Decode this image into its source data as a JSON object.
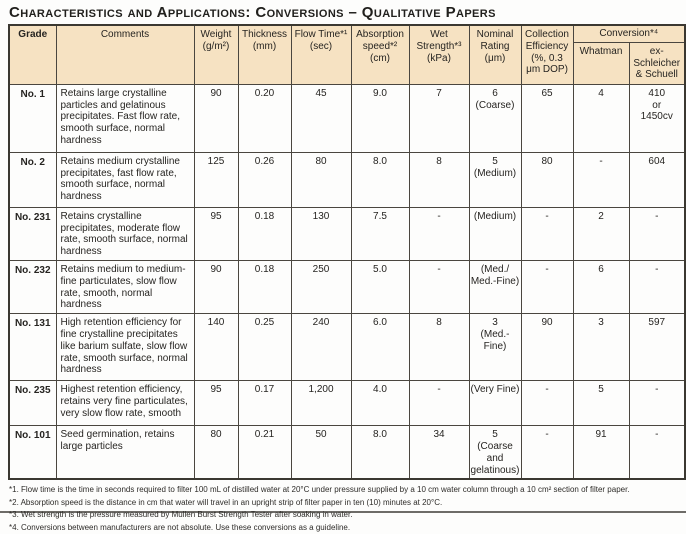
{
  "title": "Characteristics and Applications: Conversions – Qualitative Papers",
  "colors": {
    "header_bg": "#f6e2c2",
    "border": "#3b3831",
    "text": "#262421"
  },
  "table": {
    "conversion_group_label": "Conversion*⁴",
    "columns": [
      {
        "id": "grade",
        "label": "Grade"
      },
      {
        "id": "comments",
        "label": "Comments"
      },
      {
        "id": "weight",
        "label": "Weight\n(g/m²)"
      },
      {
        "id": "thickness",
        "label": "Thickness\n(mm)"
      },
      {
        "id": "flow_time",
        "label": "Flow Time*¹\n(sec)"
      },
      {
        "id": "absorption_speed",
        "label": "Absorption\nspeed*² (cm)"
      },
      {
        "id": "wet_strength",
        "label": "Wet\nStrength*³\n(kPa)"
      },
      {
        "id": "nominal_rating",
        "label": "Nominal\nRating\n(μm)"
      },
      {
        "id": "collection_efficiency",
        "label": "Collection\nEfficiency\n(%, 0.3\nμm DOP)"
      },
      {
        "id": "whatman",
        "label": "Whatman"
      },
      {
        "id": "ex_schleicher",
        "label": "ex-Schleicher\n& Schuell"
      }
    ],
    "rows": [
      {
        "grade": "No. 1",
        "comments": "Retains large crystalline particles and gelatinous precipitates. Fast flow rate, smooth surface, normal hardness",
        "weight": "90",
        "thickness": "0.20",
        "flow_time": "45",
        "absorption_speed": "9.0",
        "wet_strength": "7",
        "nominal_rating": "6\n(Coarse)",
        "collection_efficiency": "65",
        "whatman": "4",
        "ex_schleicher": "410\nor\n1450cv"
      },
      {
        "grade": "No. 2",
        "comments": "Retains medium crystalline precipitates, fast flow rate, smooth surface, normal hardness",
        "weight": "125",
        "thickness": "0.26",
        "flow_time": "80",
        "absorption_speed": "8.0",
        "wet_strength": "8",
        "nominal_rating": "5\n(Medium)",
        "collection_efficiency": "80",
        "whatman": "-",
        "ex_schleicher": "604"
      },
      {
        "grade": "No. 231",
        "comments": "Retains crystalline precipitates, moderate flow rate, smooth surface, normal hardness",
        "weight": "95",
        "thickness": "0.18",
        "flow_time": "130",
        "absorption_speed": "7.5",
        "wet_strength": "-",
        "nominal_rating": "(Medium)",
        "collection_efficiency": "-",
        "whatman": "2",
        "ex_schleicher": "-"
      },
      {
        "grade": "No. 232",
        "comments": "Retains medium to medium-fine particulates, slow flow rate, smooth, normal hardness",
        "weight": "90",
        "thickness": "0.18",
        "flow_time": "250",
        "absorption_speed": "5.0",
        "wet_strength": "-",
        "nominal_rating": "(Med./\nMed.-Fine)",
        "collection_efficiency": "-",
        "whatman": "6",
        "ex_schleicher": "-"
      },
      {
        "grade": "No. 131",
        "comments": "High retention efficiency for fine crystalline precipitates like barium sulfate, slow flow rate, smooth surface, normal hardness",
        "weight": "140",
        "thickness": "0.25",
        "flow_time": "240",
        "absorption_speed": "6.0",
        "wet_strength": "8",
        "nominal_rating": "3\n(Med.-Fine)",
        "collection_efficiency": "90",
        "whatman": "3",
        "ex_schleicher": "597"
      },
      {
        "grade": "No. 235",
        "comments": "Highest retention efficiency, retains very fine particulates, very slow flow rate, smooth",
        "weight": "95",
        "thickness": "0.17",
        "flow_time": "1,200",
        "absorption_speed": "4.0",
        "wet_strength": "-",
        "nominal_rating": "(Very Fine)",
        "collection_efficiency": "-",
        "whatman": "5",
        "ex_schleicher": "-"
      },
      {
        "grade": "No. 101",
        "comments": "Seed germination, retains large particles",
        "weight": "80",
        "thickness": "0.21",
        "flow_time": "50",
        "absorption_speed": "8.0",
        "wet_strength": "34",
        "nominal_rating": "5\n(Coarse\nand\ngelatinous)",
        "collection_efficiency": "-",
        "whatman": "91",
        "ex_schleicher": "-"
      }
    ]
  },
  "footnotes": [
    "*1. Flow time is the time in seconds required to filter 100 mL of distilled water at 20°C under pressure supplied by a 10 cm water column through a 10 cm² section of filter paper.",
    "*2. Absorption speed is the distance in cm that water will travel in an upright strip of filter paper in ten (10) minutes at 20°C.",
    "*3. Wet strength is the pressure measured by Mullen Burst Strength Tester after soaking in water.",
    "*4. Conversions between manufacturers are not absolute. Use these conversions as a guideline."
  ]
}
